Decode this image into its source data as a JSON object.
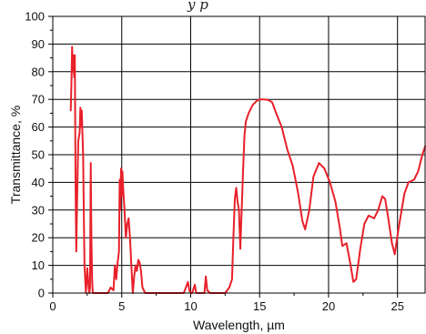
{
  "caption_fragment": "y                                    p",
  "chart_data": {
    "type": "line",
    "title": "",
    "xlabel": "Wavelength, µm",
    "ylabel": "Transmittance, %",
    "xlim": [
      0,
      27
    ],
    "ylim": [
      0,
      100
    ],
    "x_ticks": [
      0,
      5,
      10,
      15,
      20,
      25
    ],
    "y_ticks": [
      0,
      10,
      20,
      30,
      40,
      50,
      60,
      70,
      80,
      90,
      100
    ],
    "grid": true,
    "legend": "none",
    "series": [
      {
        "color": "#e8202a",
        "points": [
          [
            1.3,
            66
          ],
          [
            1.35,
            76
          ],
          [
            1.4,
            89
          ],
          [
            1.45,
            80
          ],
          [
            1.5,
            86
          ],
          [
            1.55,
            78
          ],
          [
            1.6,
            86
          ],
          [
            1.65,
            40
          ],
          [
            1.7,
            15
          ],
          [
            1.75,
            30
          ],
          [
            1.85,
            55
          ],
          [
            1.95,
            58
          ],
          [
            2.0,
            67
          ],
          [
            2.05,
            60
          ],
          [
            2.1,
            66
          ],
          [
            2.2,
            50
          ],
          [
            2.3,
            10
          ],
          [
            2.4,
            0
          ],
          [
            2.5,
            9
          ],
          [
            2.6,
            2
          ],
          [
            2.65,
            0
          ],
          [
            2.7,
            2
          ],
          [
            2.75,
            47
          ],
          [
            2.8,
            20
          ],
          [
            2.85,
            5
          ],
          [
            2.9,
            0
          ],
          [
            3.0,
            0
          ],
          [
            3.5,
            0
          ],
          [
            4.0,
            0
          ],
          [
            4.2,
            2
          ],
          [
            4.4,
            1
          ],
          [
            4.5,
            10
          ],
          [
            4.6,
            5
          ],
          [
            4.7,
            11
          ],
          [
            4.8,
            15
          ],
          [
            4.85,
            41
          ],
          [
            4.9,
            30
          ],
          [
            4.95,
            45
          ],
          [
            5.0,
            35
          ],
          [
            5.05,
            44
          ],
          [
            5.1,
            38
          ],
          [
            5.2,
            30
          ],
          [
            5.3,
            20
          ],
          [
            5.4,
            25
          ],
          [
            5.5,
            27
          ],
          [
            5.6,
            20
          ],
          [
            5.7,
            10
          ],
          [
            5.8,
            0
          ],
          [
            5.9,
            6
          ],
          [
            6.0,
            10
          ],
          [
            6.1,
            8
          ],
          [
            6.2,
            12
          ],
          [
            6.3,
            11
          ],
          [
            6.4,
            8
          ],
          [
            6.5,
            2
          ],
          [
            6.7,
            0
          ],
          [
            7.5,
            0
          ],
          [
            8.5,
            0
          ],
          [
            9.5,
            0
          ],
          [
            9.8,
            4
          ],
          [
            9.9,
            1
          ],
          [
            10.0,
            0
          ],
          [
            10.1,
            0
          ],
          [
            10.3,
            3
          ],
          [
            10.4,
            0
          ],
          [
            10.6,
            0
          ],
          [
            11.0,
            0
          ],
          [
            11.1,
            6
          ],
          [
            11.2,
            1
          ],
          [
            11.4,
            0
          ],
          [
            12.0,
            0
          ],
          [
            12.5,
            0
          ],
          [
            12.8,
            2
          ],
          [
            13.0,
            5
          ],
          [
            13.1,
            20
          ],
          [
            13.2,
            34
          ],
          [
            13.3,
            38
          ],
          [
            13.4,
            33
          ],
          [
            13.5,
            30
          ],
          [
            13.6,
            16
          ],
          [
            13.7,
            30
          ],
          [
            13.8,
            44
          ],
          [
            13.9,
            57
          ],
          [
            14.0,
            62
          ],
          [
            14.2,
            65
          ],
          [
            14.5,
            68
          ],
          [
            14.8,
            69.5
          ],
          [
            15.0,
            70
          ],
          [
            15.3,
            70
          ],
          [
            15.6,
            69.8
          ],
          [
            15.9,
            69
          ],
          [
            16.2,
            65
          ],
          [
            16.6,
            60
          ],
          [
            17.0,
            52
          ],
          [
            17.4,
            46
          ],
          [
            17.8,
            36
          ],
          [
            18.1,
            26
          ],
          [
            18.3,
            23
          ],
          [
            18.6,
            30
          ],
          [
            18.9,
            42
          ],
          [
            19.3,
            47
          ],
          [
            19.7,
            45
          ],
          [
            20.1,
            40
          ],
          [
            20.5,
            33
          ],
          [
            20.8,
            24
          ],
          [
            21.0,
            17
          ],
          [
            21.3,
            18
          ],
          [
            21.6,
            10
          ],
          [
            21.8,
            4
          ],
          [
            22.0,
            5
          ],
          [
            22.3,
            16
          ],
          [
            22.6,
            25
          ],
          [
            22.9,
            28
          ],
          [
            23.3,
            27
          ],
          [
            23.6,
            30
          ],
          [
            23.9,
            35
          ],
          [
            24.1,
            34
          ],
          [
            24.3,
            28
          ],
          [
            24.6,
            18
          ],
          [
            24.8,
            14
          ],
          [
            25.1,
            24
          ],
          [
            25.5,
            36
          ],
          [
            25.8,
            40
          ],
          [
            26.2,
            41
          ],
          [
            26.5,
            44
          ],
          [
            26.8,
            50
          ],
          [
            27.0,
            53
          ]
        ]
      }
    ]
  }
}
